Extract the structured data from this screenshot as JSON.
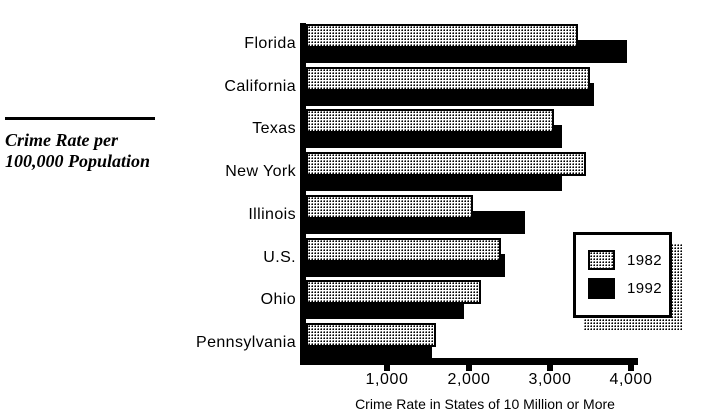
{
  "side_title": {
    "line1": "Crime Rate per",
    "line2": "100,000 Population"
  },
  "chart_data": {
    "type": "bar",
    "orientation": "horizontal",
    "title": "Crime Rate per 100,000 Population",
    "xlabel": "Crime Rate in States of 10 Million or More",
    "ylabel": "",
    "categories": [
      "Florida",
      "California",
      "Texas",
      "New York",
      "Illinois",
      "U.S.",
      "Ohio",
      "Pennsylvania"
    ],
    "series": [
      {
        "name": "1982",
        "style": "dotted-pattern",
        "values": [
          3350,
          3500,
          3050,
          3450,
          2050,
          2400,
          2150,
          1600
        ]
      },
      {
        "name": "1992",
        "style": "solid-black",
        "values": [
          3950,
          3550,
          3150,
          3150,
          2700,
          2450,
          1950,
          1550
        ]
      }
    ],
    "x_ticks": [
      {
        "value": 1000,
        "label": "1,000"
      },
      {
        "value": 2000,
        "label": "2,000"
      },
      {
        "value": 3000,
        "label": "3,000"
      },
      {
        "value": 4000,
        "label": "4,000"
      }
    ],
    "xlim": [
      0,
      4000
    ],
    "grid": false,
    "legend": {
      "position": "right",
      "entries": [
        "1982",
        "1992"
      ]
    },
    "colors": {
      "background": "#ffffff",
      "axis": "#000000",
      "series_1982_fill": "#ffffff",
      "series_1982_dots": "#000000",
      "series_1992": "#000000"
    }
  }
}
